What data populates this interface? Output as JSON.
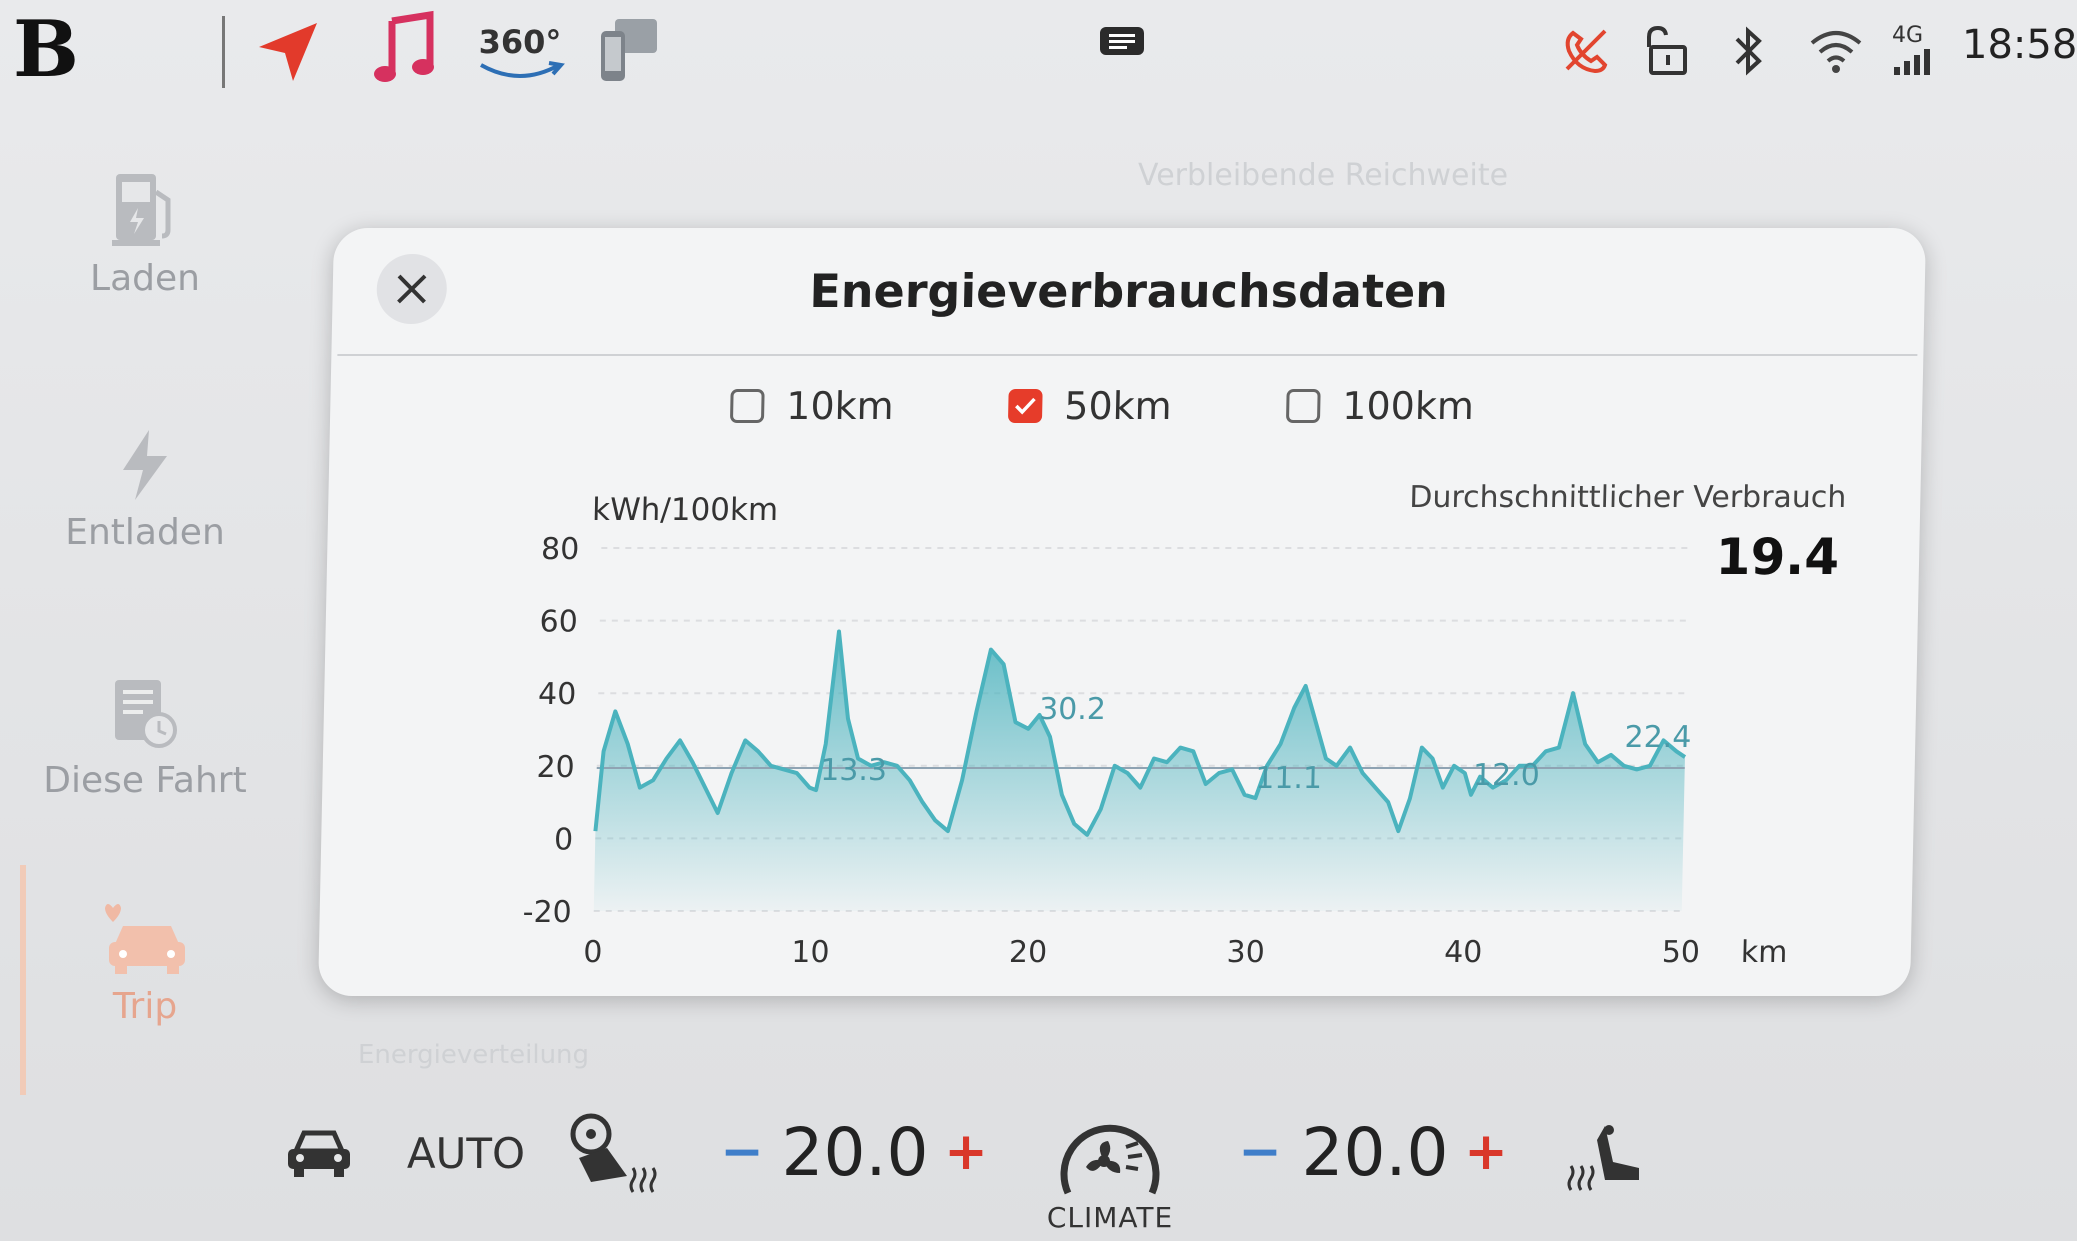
{
  "status_bar": {
    "brand_letter": "B",
    "icons": [
      "apps-grid-icon",
      "navigation-arrow-icon",
      "music-note-icon",
      "camera-360-icon",
      "phone-mirror-icon",
      "message-icon",
      "no-call-icon",
      "unlock-icon",
      "bluetooth-icon",
      "wifi-icon",
      "signal-4g-icon"
    ],
    "camera_label": "360°",
    "network_label": "4G",
    "time": "18:58"
  },
  "sidebar": {
    "items": [
      {
        "label": "Laden",
        "icon": "charging-station-icon"
      },
      {
        "label": "Entladen",
        "icon": "lightning-icon"
      },
      {
        "label": "Diese Fahrt",
        "icon": "trip-log-icon"
      },
      {
        "label": "Trip",
        "icon": "car-trip-icon",
        "active": true
      }
    ]
  },
  "background_text": {
    "range": "Verbleibende Reichweite",
    "distribution": "Energieverteilung"
  },
  "dialog": {
    "title": "Energieverbrauchsdaten",
    "ranges": [
      {
        "label": "10km",
        "checked": false
      },
      {
        "label": "50km",
        "checked": true
      },
      {
        "label": "100km",
        "checked": false
      }
    ],
    "avg_label": "Durchschnittlicher Verbrauch",
    "avg_value": "19.4"
  },
  "chart_data": {
    "type": "area",
    "ylabel": "kWh/100km",
    "xlabel": "km",
    "xlim": [
      0,
      50
    ],
    "ylim": [
      -20,
      80
    ],
    "x_ticks": [
      0,
      10,
      20,
      30,
      40,
      50
    ],
    "y_ticks": [
      80,
      60,
      40,
      20,
      0,
      -20
    ],
    "average": 19.4,
    "grid": "horizontal dashed",
    "annotations": [
      {
        "x": 10,
        "y": 13.3,
        "label": "13.3"
      },
      {
        "x": 20,
        "y": 30.2,
        "label": "30.2"
      },
      {
        "x": 30,
        "y": 11.1,
        "label": "11.1"
      },
      {
        "x": 40,
        "y": 12.0,
        "label": "12.0"
      },
      {
        "x": 50,
        "y": 22.4,
        "label": "22.4"
      }
    ],
    "series": [
      {
        "color": "#4bb3be",
        "points": [
          [
            0,
            2
          ],
          [
            0.3,
            24
          ],
          [
            0.8,
            35
          ],
          [
            1.4,
            26
          ],
          [
            2,
            14
          ],
          [
            2.6,
            16
          ],
          [
            3.2,
            22
          ],
          [
            3.8,
            27
          ],
          [
            4.4,
            21
          ],
          [
            5,
            14
          ],
          [
            5.6,
            7
          ],
          [
            6.2,
            18
          ],
          [
            6.8,
            27
          ],
          [
            7.4,
            24
          ],
          [
            8,
            20
          ],
          [
            8.6,
            19
          ],
          [
            9.2,
            18
          ],
          [
            9.8,
            14
          ],
          [
            10.1,
            13.3
          ],
          [
            10.5,
            26
          ],
          [
            11,
            57
          ],
          [
            11.5,
            33
          ],
          [
            12,
            22
          ],
          [
            12.6,
            20
          ],
          [
            13.2,
            21
          ],
          [
            13.8,
            20
          ],
          [
            14.4,
            16
          ],
          [
            15,
            10
          ],
          [
            15.6,
            5
          ],
          [
            16.2,
            2
          ],
          [
            16.8,
            16
          ],
          [
            17.4,
            35
          ],
          [
            18,
            52
          ],
          [
            18.6,
            48
          ],
          [
            19.2,
            32
          ],
          [
            19.8,
            30.2
          ],
          [
            20.3,
            34
          ],
          [
            20.8,
            28
          ],
          [
            21.4,
            12
          ],
          [
            22,
            4
          ],
          [
            22.6,
            1
          ],
          [
            23.2,
            8
          ],
          [
            23.8,
            20
          ],
          [
            24.4,
            18
          ],
          [
            25,
            14
          ],
          [
            25.6,
            22
          ],
          [
            26.2,
            21
          ],
          [
            26.8,
            25
          ],
          [
            27.4,
            24
          ],
          [
            28,
            15
          ],
          [
            28.6,
            18
          ],
          [
            29.2,
            19
          ],
          [
            29.8,
            12
          ],
          [
            30.3,
            11.1
          ],
          [
            30.8,
            20
          ],
          [
            31.4,
            26
          ],
          [
            32,
            36
          ],
          [
            32.5,
            42
          ],
          [
            33,
            32
          ],
          [
            33.5,
            22
          ],
          [
            34,
            20
          ],
          [
            34.6,
            25
          ],
          [
            35.2,
            18
          ],
          [
            35.8,
            14
          ],
          [
            36.4,
            10
          ],
          [
            36.9,
            2
          ],
          [
            37.4,
            11
          ],
          [
            37.9,
            25
          ],
          [
            38.4,
            22
          ],
          [
            38.9,
            14
          ],
          [
            39.4,
            20
          ],
          [
            39.9,
            18
          ],
          [
            40.2,
            12.0
          ],
          [
            40.6,
            17
          ],
          [
            41.2,
            14
          ],
          [
            41.8,
            16
          ],
          [
            42.4,
            20
          ],
          [
            43,
            20
          ],
          [
            43.6,
            24
          ],
          [
            44.2,
            25
          ],
          [
            44.8,
            40
          ],
          [
            45.4,
            26
          ],
          [
            46,
            21
          ],
          [
            46.6,
            23
          ],
          [
            47.2,
            20
          ],
          [
            47.8,
            19
          ],
          [
            48.4,
            20
          ],
          [
            49,
            27
          ],
          [
            49.6,
            24
          ],
          [
            50,
            22.4
          ]
        ]
      }
    ]
  },
  "climate": {
    "mode": "AUTO",
    "left_temp": "20.0",
    "right_temp": "20.0",
    "minus": "−",
    "plus": "+",
    "climate_label": "CLIMATE",
    "icons": [
      "car-icon",
      "steering-wheel-heat-icon",
      "fan-icon",
      "seat-heat-icon"
    ]
  }
}
